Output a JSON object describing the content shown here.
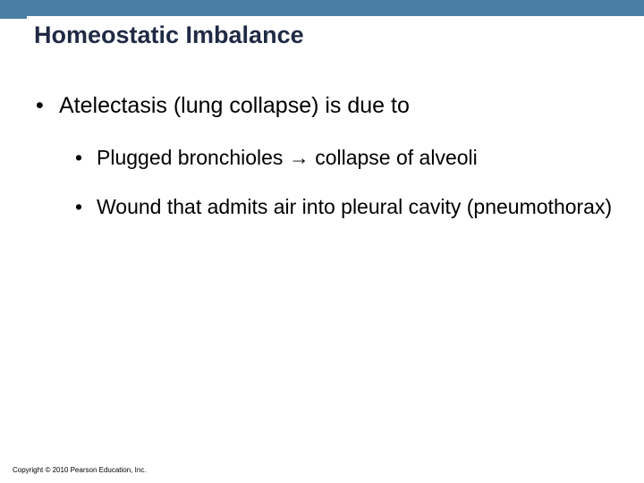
{
  "header_bar_color": "#4a7fa4",
  "title": "Homeostatic Imbalance",
  "title_color": "#1f2a44",
  "bullets": {
    "l1": "Atelectasis (lung collapse) is due to",
    "l2a": "Plugged bronchioles → collapse of alveoli",
    "l2b": "Wound that admits air into pleural cavity (pneumothorax)"
  },
  "bullet_marker": "•",
  "copyright": "Copyright © 2010 Pearson Education, Inc."
}
